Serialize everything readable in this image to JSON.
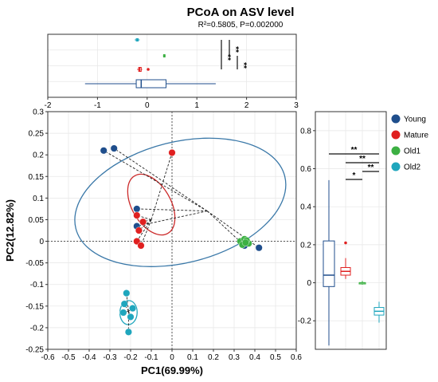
{
  "title": "PCoA on ASV level",
  "subtitle": "R²=0.5805, P=0.002000",
  "colors": {
    "Young": "#1f4e8c",
    "Mature": "#e02020",
    "Old1": "#3cb043",
    "Old2": "#1fa6bd",
    "ellipse_Young": "#3a78a8",
    "ellipse_Mature": "#cc2a2a",
    "ellipse_Old2": "#1fa6bd"
  },
  "chart_data": [
    {
      "type": "scatter",
      "role": "main",
      "xlabel": "PC1(69.99%)",
      "ylabel": "PC2(12.82%)",
      "xlim": [
        -0.6,
        0.6
      ],
      "ylim": [
        -0.25,
        0.3
      ],
      "xticks": [
        -0.6,
        -0.5,
        -0.4,
        -0.3,
        -0.2,
        -0.1,
        0,
        0.1,
        0.2,
        0.3,
        0.4,
        0.5,
        0.6
      ],
      "yticks": [
        -0.25,
        -0.2,
        -0.15,
        -0.1,
        -0.05,
        0,
        0.05,
        0.1,
        0.15,
        0.2,
        0.25,
        0.3
      ],
      "grid": true,
      "series": [
        {
          "name": "Young",
          "points": [
            [
              -0.33,
              0.21
            ],
            [
              -0.28,
              0.215
            ],
            [
              -0.17,
              0.075
            ],
            [
              -0.17,
              0.035
            ],
            [
              0.42,
              -0.015
            ],
            [
              0.35,
              -0.01
            ]
          ],
          "ellipse": {
            "cx": 0.04,
            "cy": 0.09,
            "rx": 0.52,
            "ry": 0.14,
            "angle_deg": -14
          }
        },
        {
          "name": "Mature",
          "points": [
            [
              0.0,
              0.205
            ],
            [
              -0.17,
              0.06
            ],
            [
              -0.14,
              0.045
            ],
            [
              -0.17,
              0.0
            ],
            [
              -0.15,
              -0.01
            ],
            [
              -0.16,
              0.025
            ]
          ],
          "ellipse": {
            "cx": -0.1,
            "cy": 0.085,
            "rx": 0.16,
            "ry": 0.045,
            "angle_deg": 60
          }
        },
        {
          "name": "Old1",
          "points": [
            [
              0.33,
              0.0
            ],
            [
              0.35,
              0.005
            ],
            [
              0.37,
              -0.005
            ],
            [
              0.34,
              -0.008
            ],
            [
              0.36,
              0.002
            ],
            [
              0.355,
              -0.003
            ]
          ],
          "ellipse": null
        },
        {
          "name": "Old2",
          "points": [
            [
              -0.22,
              -0.12
            ],
            [
              -0.19,
              -0.155
            ],
            [
              -0.23,
              -0.145
            ],
            [
              -0.2,
              -0.175
            ],
            [
              -0.235,
              -0.165
            ],
            [
              -0.21,
              -0.21
            ]
          ],
          "ellipse": {
            "cx": -0.21,
            "cy": -0.165,
            "rx": 0.058,
            "ry": 0.02,
            "angle_deg": -88
          }
        }
      ],
      "centroids": {
        "Young": [
          0.17,
          0.07
        ],
        "Mature": [
          -0.1,
          0.05
        ],
        "Old1": [
          0.35,
          -0.002
        ],
        "Old2": [
          -0.21,
          -0.162
        ]
      }
    },
    {
      "type": "box",
      "role": "top_pc1",
      "orientation": "horizontal",
      "xlim": [
        -2,
        3
      ],
      "xticks": [
        -2,
        -1,
        0,
        1,
        2,
        3
      ],
      "grid": true,
      "boxes": [
        {
          "name": "Old2",
          "min": -0.25,
          "q1": -0.22,
          "median": -0.2,
          "q3": -0.18,
          "max": -0.15,
          "outliers": []
        },
        {
          "name": "Old1",
          "min": 0.32,
          "q1": 0.33,
          "median": 0.345,
          "q3": 0.36,
          "max": 0.37,
          "outliers": []
        },
        {
          "name": "Mature",
          "min": -0.2,
          "q1": -0.17,
          "median": -0.15,
          "q3": -0.12,
          "max": -0.1,
          "outliers": [
            0.02
          ]
        },
        {
          "name": "Young",
          "min": -1.25,
          "q1": -0.22,
          "median": -0.12,
          "q3": 0.38,
          "max": 1.38,
          "outliers": []
        }
      ],
      "significance": [
        {
          "label": "**"
        },
        {
          "label": "**"
        },
        {
          "label": "**"
        }
      ]
    },
    {
      "type": "box",
      "role": "right_pc2",
      "orientation": "vertical",
      "ylim": [
        -0.35,
        0.9
      ],
      "yticks": [
        -0.2,
        0,
        0.2,
        0.4,
        0.6,
        0.8
      ],
      "grid": true,
      "boxes": [
        {
          "name": "Young",
          "min": -0.33,
          "q1": -0.02,
          "median": 0.04,
          "q3": 0.22,
          "max": 0.54,
          "outliers": []
        },
        {
          "name": "Mature",
          "min": 0.02,
          "q1": 0.04,
          "median": 0.06,
          "q3": 0.08,
          "max": 0.13,
          "outliers": [
            0.21
          ]
        },
        {
          "name": "Old1",
          "min": -0.01,
          "q1": -0.005,
          "median": 0.0,
          "q3": 0.0,
          "max": 0.01,
          "outliers": []
        },
        {
          "name": "Old2",
          "min": -0.21,
          "q1": -0.17,
          "median": -0.15,
          "q3": -0.13,
          "max": -0.1,
          "outliers": []
        }
      ],
      "significance": [
        {
          "from": 0,
          "to": 3,
          "label": "**"
        },
        {
          "from": 1,
          "to": 3,
          "label": "**"
        },
        {
          "from": 2,
          "to": 3,
          "label": "**"
        },
        {
          "from": 1,
          "to": 2,
          "label": "*"
        }
      ]
    }
  ],
  "legend": {
    "placement": "right",
    "entries": [
      "Young",
      "Mature",
      "Old1",
      "Old2"
    ]
  }
}
